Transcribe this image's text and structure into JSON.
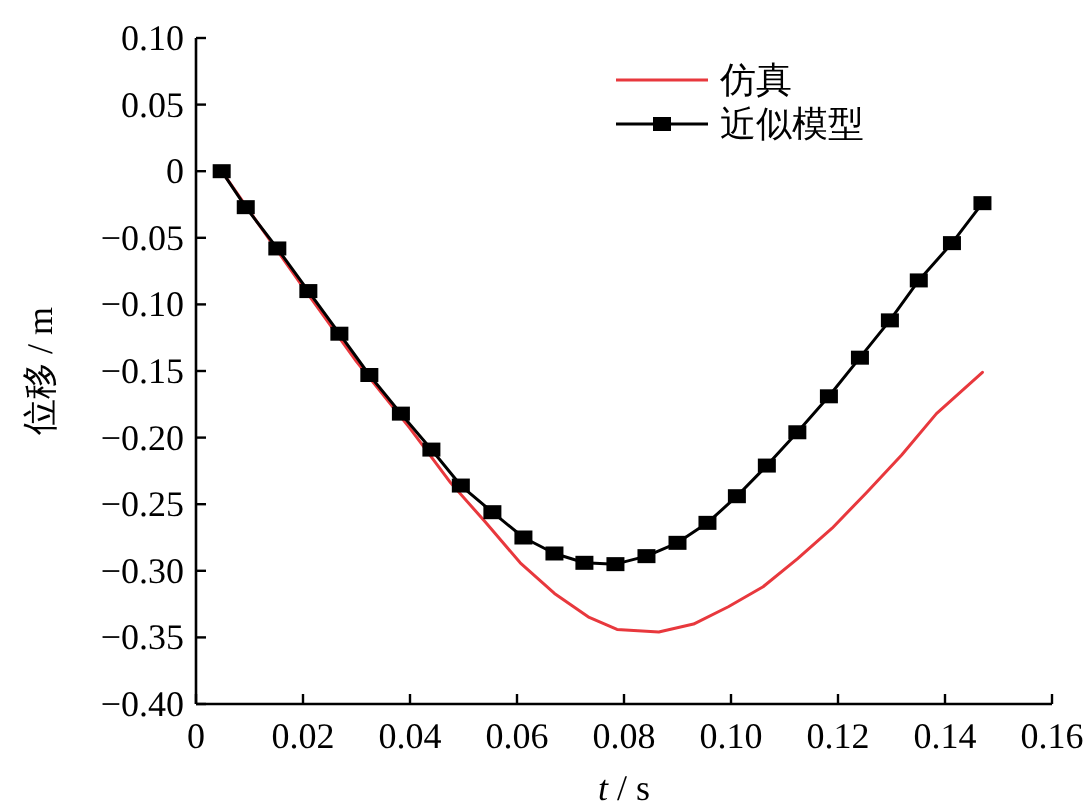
{
  "chart_data": {
    "type": "line",
    "xlabel": "*t* / s",
    "ylabel": "位移 / m",
    "legend": "top right",
    "grid": false,
    "xlim": [
      0,
      0.16
    ],
    "ylim": [
      -0.4,
      0.1
    ],
    "xticks": [
      0,
      {
        "value": 0.02,
        "label": "0.02"
      },
      {
        "value": 0.04,
        "label": "0.04"
      },
      {
        "value": 0.06,
        "label": "0.06"
      },
      {
        "value": 0.08,
        "label": "0.08"
      },
      {
        "value": 0.1,
        "label": "0.10"
      },
      {
        "value": 0.12,
        "label": "0.12"
      },
      {
        "value": 0.14,
        "label": "0.14"
      },
      {
        "value": 0.16,
        "label": "0.16"
      }
    ],
    "yticks": [
      {
        "value": 0.1,
        "label": "0.10"
      },
      {
        "value": 0.05,
        "label": "0.05"
      },
      0,
      {
        "value": -0.05,
        "label": "−0.05"
      },
      {
        "value": -0.1,
        "label": "−0.10"
      },
      {
        "value": -0.15,
        "label": "−0.15"
      },
      {
        "value": -0.2,
        "label": "−0.20"
      },
      {
        "value": -0.25,
        "label": "−0.25"
      },
      {
        "value": -0.3,
        "label": "−0.30"
      },
      {
        "value": -0.35,
        "label": "−0.35"
      },
      {
        "value": -0.4,
        "label": "−0.40"
      }
    ],
    "series": [
      {
        "name": "仿真",
        "color": "#e8383d",
        "marker": "none",
        "x": [
          0.0048,
          0.01,
          0.02,
          0.03,
          0.04,
          0.0476,
          0.054,
          0.0606,
          0.067,
          0.0735,
          0.0787,
          0.0865,
          0.093,
          0.0995,
          0.106,
          0.1124,
          0.1189,
          0.1254,
          0.1319,
          0.1384,
          0.147
        ],
        "values": [
          0,
          -0.03,
          -0.087,
          -0.143,
          -0.193,
          -0.234,
          -0.263,
          -0.294,
          -0.317,
          -0.335,
          -0.344,
          -0.346,
          -0.34,
          -0.327,
          -0.312,
          -0.291,
          -0.268,
          -0.241,
          -0.213,
          -0.182,
          -0.151
        ]
      },
      {
        "name": "近似模型",
        "color": "#000000",
        "marker": "square",
        "x": [
          0.0048,
          0.0093,
          0.0152,
          0.021,
          0.0268,
          0.0324,
          0.0383,
          0.044,
          0.0495,
          0.0554,
          0.0612,
          0.067,
          0.0726,
          0.0784,
          0.0842,
          0.09,
          0.0956,
          0.1011,
          0.1067,
          0.1124,
          0.1183,
          0.1241,
          0.1297,
          0.1351,
          0.1413,
          0.147
        ],
        "values": [
          0,
          -0.027,
          -0.058,
          -0.09,
          -0.122,
          -0.153,
          -0.182,
          -0.209,
          -0.236,
          -0.256,
          -0.275,
          -0.287,
          -0.294,
          -0.295,
          -0.289,
          -0.279,
          -0.264,
          -0.244,
          -0.221,
          -0.196,
          -0.169,
          -0.14,
          -0.112,
          -0.082,
          -0.054,
          -0.024
        ]
      }
    ]
  }
}
